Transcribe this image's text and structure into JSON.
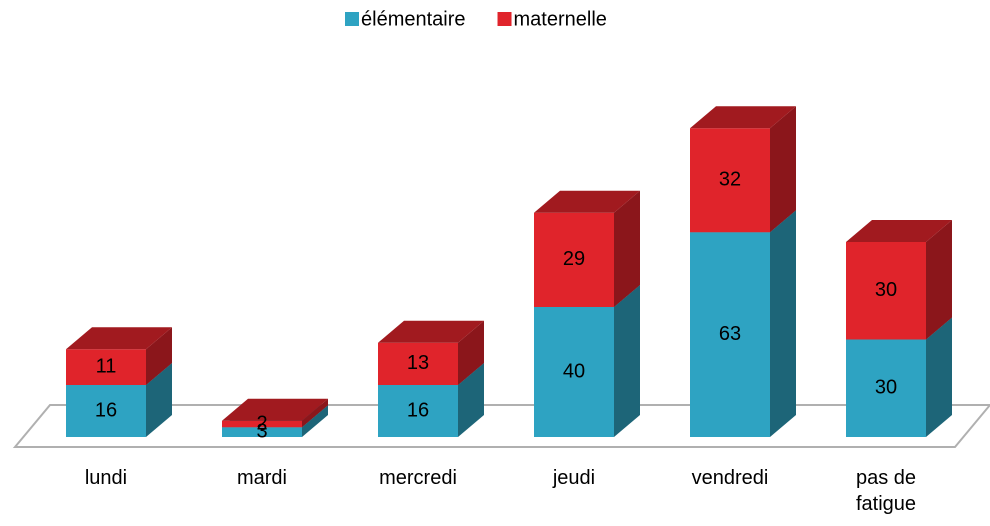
{
  "chart_data": {
    "type": "bar3d_stacked",
    "categories": [
      "lundi",
      "mardi",
      "mercredi",
      "jeudi",
      "vendredi",
      "pas de fatigue"
    ],
    "series": [
      {
        "name": "élémentaire",
        "color": "#2ea3c2",
        "values": [
          16,
          3,
          16,
          40,
          63,
          30
        ]
      },
      {
        "name": "maternelle",
        "color": "#e0242b",
        "values": [
          11,
          2,
          13,
          29,
          32,
          30
        ]
      }
    ],
    "ylim": [
      0,
      100
    ]
  }
}
